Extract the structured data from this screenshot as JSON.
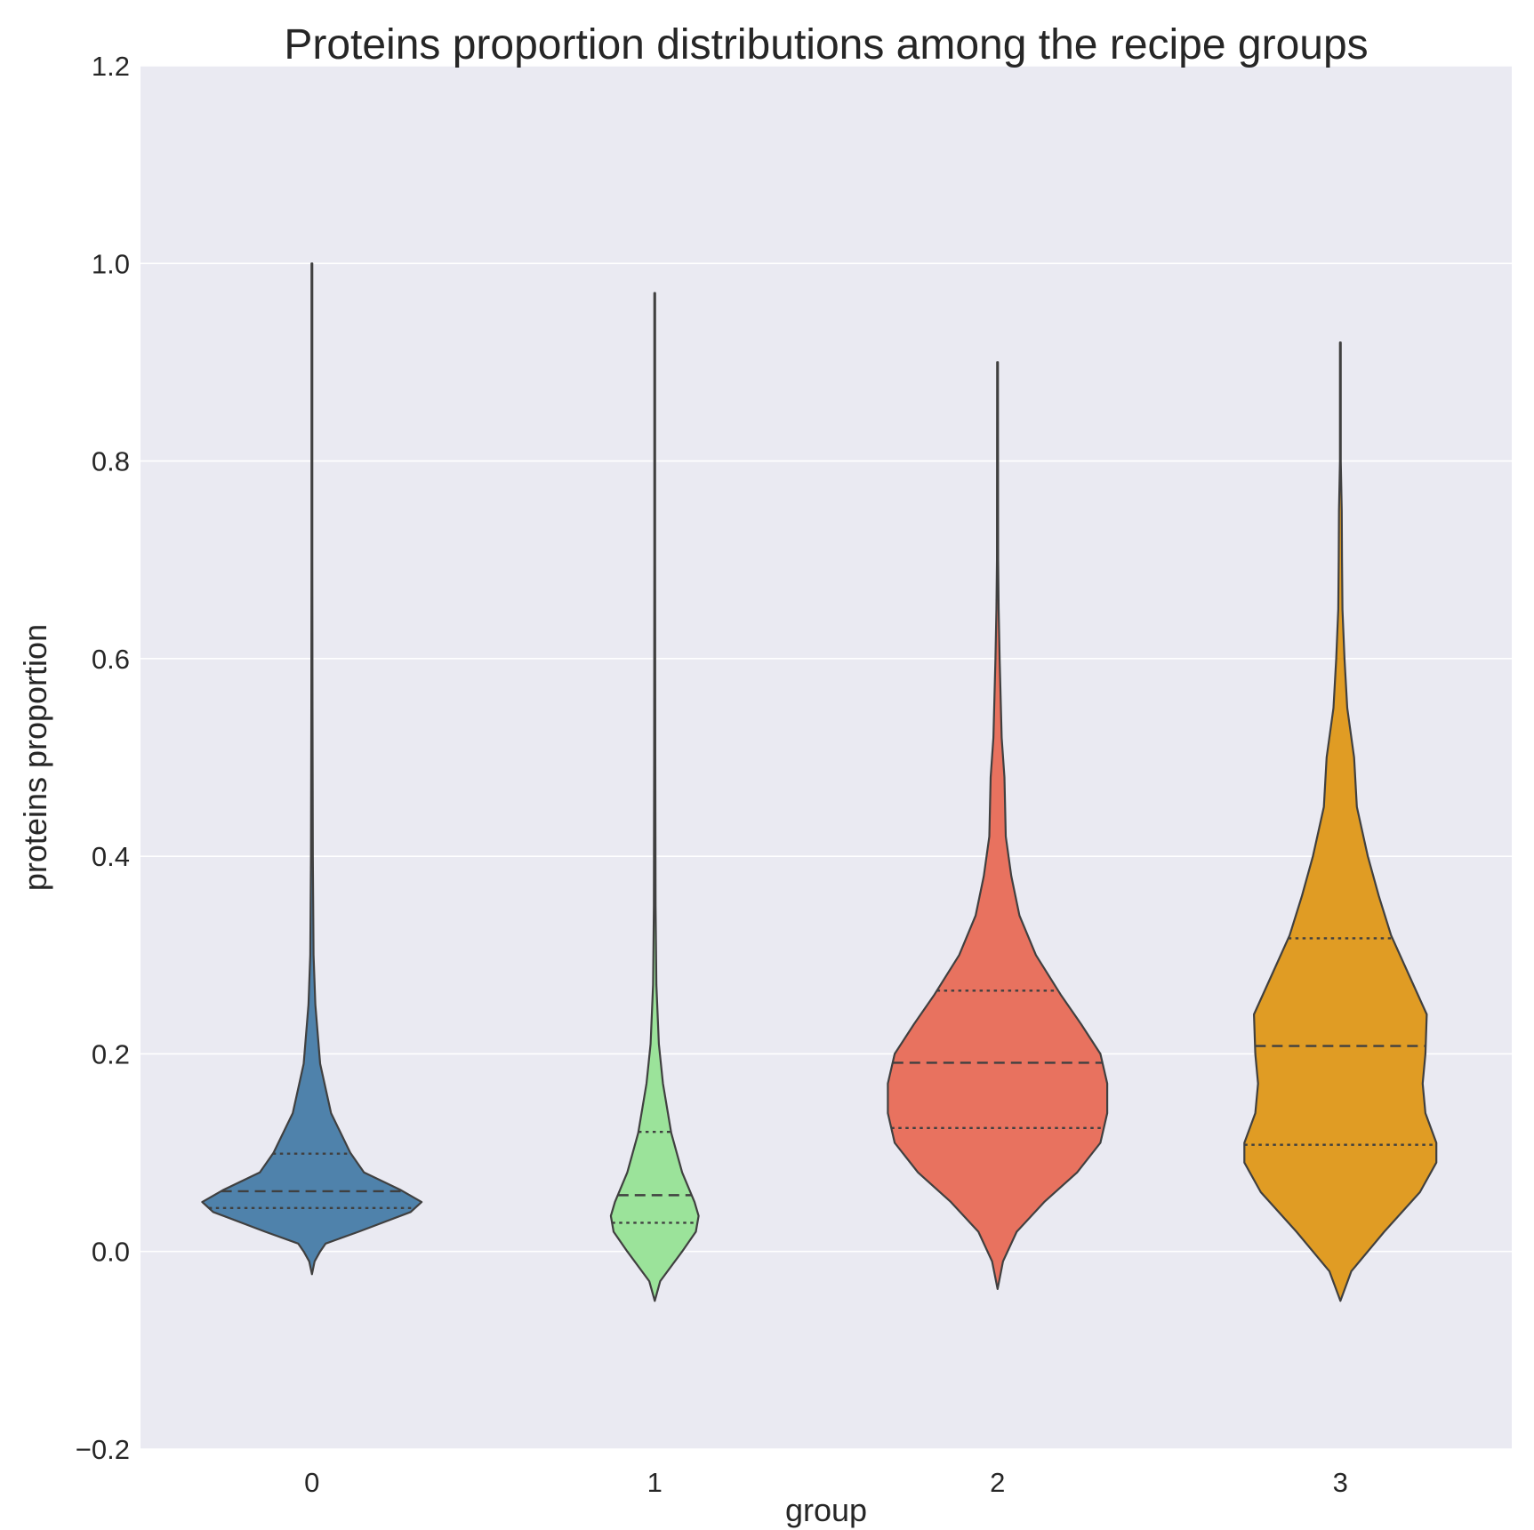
{
  "chart_data": {
    "type": "violin",
    "title": "Proteins proportion distributions among the recipe groups",
    "xlabel": "group",
    "ylabel": "proteins proportion",
    "ylim": [
      -0.2,
      1.2
    ],
    "yticks": [
      -0.2,
      0.0,
      0.2,
      0.4,
      0.6,
      0.8,
      1.0,
      1.2
    ],
    "ytick_labels": [
      "−0.2",
      "0.0",
      "0.2",
      "0.4",
      "0.6",
      "0.8",
      "1.0",
      "1.2"
    ],
    "grid": true,
    "background_color": "#eaeaf2",
    "categories": [
      "0",
      "1",
      "2",
      "3"
    ],
    "violins": [
      {
        "category": "0",
        "color": "#4f82ab",
        "min": -0.023,
        "max": 1.0,
        "quartiles": [
          0.044,
          0.061,
          0.099
        ],
        "profile": [
          [
            -0.023,
            0.0
          ],
          [
            -0.01,
            0.02
          ],
          [
            0.0,
            0.06
          ],
          [
            0.008,
            0.1
          ],
          [
            0.02,
            0.34
          ],
          [
            0.04,
            0.72
          ],
          [
            0.05,
            0.8
          ],
          [
            0.062,
            0.65
          ],
          [
            0.08,
            0.38
          ],
          [
            0.1,
            0.28
          ],
          [
            0.14,
            0.14
          ],
          [
            0.19,
            0.06
          ],
          [
            0.25,
            0.025
          ],
          [
            0.3,
            0.012
          ],
          [
            0.4,
            0.007
          ],
          [
            0.55,
            0.004
          ],
          [
            0.7,
            0.003
          ],
          [
            0.85,
            0.003
          ],
          [
            1.0,
            0.003
          ]
        ]
      },
      {
        "category": "1",
        "color": "#9be39a",
        "min": -0.05,
        "max": 0.97,
        "quartiles": [
          0.029,
          0.057,
          0.121
        ],
        "profile": [
          [
            -0.05,
            0.0
          ],
          [
            -0.03,
            0.04
          ],
          [
            0.0,
            0.2
          ],
          [
            0.02,
            0.3
          ],
          [
            0.036,
            0.32
          ],
          [
            0.05,
            0.29
          ],
          [
            0.08,
            0.2
          ],
          [
            0.12,
            0.12
          ],
          [
            0.17,
            0.06
          ],
          [
            0.21,
            0.03
          ],
          [
            0.27,
            0.012
          ],
          [
            0.35,
            0.006
          ],
          [
            0.5,
            0.004
          ],
          [
            0.7,
            0.003
          ],
          [
            0.97,
            0.003
          ]
        ]
      },
      {
        "category": "2",
        "color": "#e8725f",
        "min": -0.038,
        "max": 0.9,
        "quartiles": [
          0.125,
          0.191,
          0.264
        ],
        "profile": [
          [
            -0.038,
            0.0
          ],
          [
            -0.01,
            0.04
          ],
          [
            0.02,
            0.14
          ],
          [
            0.05,
            0.34
          ],
          [
            0.08,
            0.58
          ],
          [
            0.11,
            0.75
          ],
          [
            0.14,
            0.8
          ],
          [
            0.17,
            0.8
          ],
          [
            0.2,
            0.75
          ],
          [
            0.23,
            0.61
          ],
          [
            0.26,
            0.46
          ],
          [
            0.3,
            0.28
          ],
          [
            0.34,
            0.16
          ],
          [
            0.38,
            0.1
          ],
          [
            0.42,
            0.06
          ],
          [
            0.48,
            0.05
          ],
          [
            0.52,
            0.03
          ],
          [
            0.6,
            0.015
          ],
          [
            0.65,
            0.008
          ],
          [
            0.7,
            0.004
          ],
          [
            0.9,
            0.003
          ]
        ]
      },
      {
        "category": "3",
        "color": "#e09c24",
        "min": -0.05,
        "max": 0.92,
        "quartiles": [
          0.108,
          0.208,
          0.317
        ],
        "profile": [
          [
            -0.05,
            0.0
          ],
          [
            -0.02,
            0.08
          ],
          [
            0.02,
            0.32
          ],
          [
            0.06,
            0.58
          ],
          [
            0.09,
            0.7
          ],
          [
            0.11,
            0.7
          ],
          [
            0.14,
            0.62
          ],
          [
            0.17,
            0.6
          ],
          [
            0.2,
            0.62
          ],
          [
            0.24,
            0.63
          ],
          [
            0.28,
            0.5
          ],
          [
            0.32,
            0.37
          ],
          [
            0.36,
            0.28
          ],
          [
            0.4,
            0.2
          ],
          [
            0.45,
            0.12
          ],
          [
            0.5,
            0.1
          ],
          [
            0.55,
            0.05
          ],
          [
            0.6,
            0.03
          ],
          [
            0.65,
            0.015
          ],
          [
            0.7,
            0.012
          ],
          [
            0.75,
            0.01
          ],
          [
            0.8,
            0.003
          ],
          [
            0.92,
            0.003
          ]
        ]
      }
    ]
  }
}
